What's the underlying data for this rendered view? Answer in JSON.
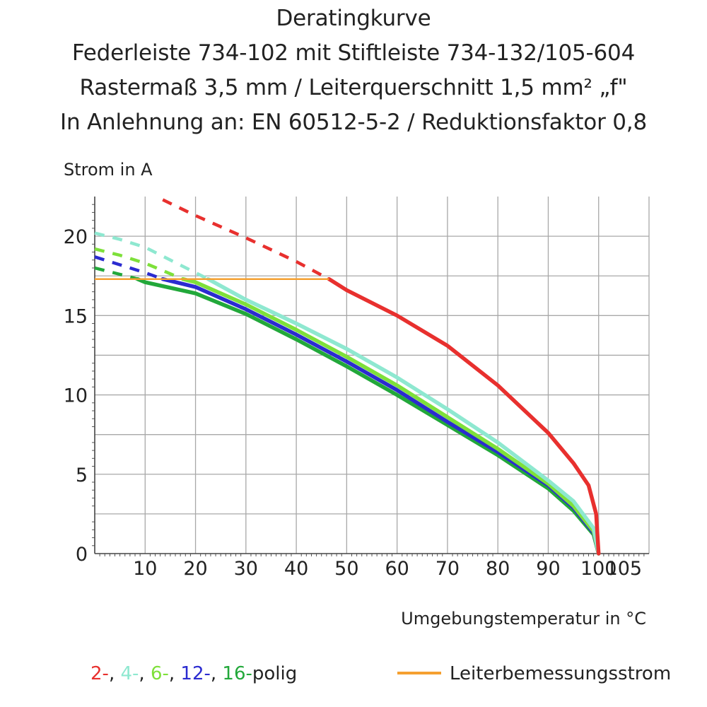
{
  "titles": [
    "Deratingkurve",
    "Federleiste 734-102 mit Stiftleiste 734-132/105-604",
    "Rastermaß 3,5 mm / Leiterquerschnitt 1,5 mm² „f\"",
    "In Anlehnung an: EN 60512-5-2 / Reduktionsfaktor 0,8"
  ],
  "legend": {
    "parts": [
      {
        "text": "2-",
        "color": "#e8302e"
      },
      {
        "text": ", ",
        "color": "#222222"
      },
      {
        "text": "4-",
        "color": "#8ee8d0"
      },
      {
        "text": ", ",
        "color": "#222222"
      },
      {
        "text": "6-",
        "color": "#7ee03a"
      },
      {
        "text": ", ",
        "color": "#222222"
      },
      {
        "text": "12-",
        "color": "#2b2bd0"
      },
      {
        "text": ", ",
        "color": "#222222"
      },
      {
        "text": "16-",
        "color": "#22a83a"
      },
      {
        "text": "polig",
        "color": "#222222"
      }
    ],
    "rated_label": "Leiterbemessungsstrom",
    "rated_color": "#f5a030"
  },
  "chart_data": {
    "type": "line",
    "ylabel": "Strom in A",
    "xlabel": "Umgebungstemperatur in °C",
    "xlim": [
      0,
      110
    ],
    "ylim": [
      0,
      22.5
    ],
    "xticks": [
      10,
      20,
      30,
      40,
      50,
      60,
      70,
      80,
      90,
      100,
      105
    ],
    "yticks": [
      0,
      5,
      10,
      15,
      20
    ],
    "xgrid": [
      0,
      10,
      20,
      30,
      40,
      50,
      60,
      70,
      80,
      90,
      100,
      110
    ],
    "ygrid": [
      0,
      2.5,
      5,
      7.5,
      10,
      12.5,
      15,
      17.5,
      20
    ],
    "grid": true,
    "rated_current": {
      "value": 17.3,
      "x_range": [
        0,
        46.5
      ],
      "color": "#f5a030"
    },
    "series": [
      {
        "name": "2-polig",
        "color": "#e8302e",
        "dashed": [
          [
            13.5,
            22.3
          ],
          [
            20,
            21.3
          ],
          [
            30,
            19.9
          ],
          [
            40,
            18.4
          ],
          [
            46.5,
            17.3
          ]
        ],
        "solid": [
          [
            46.5,
            17.3
          ],
          [
            50,
            16.6
          ],
          [
            60,
            15.0
          ],
          [
            70,
            13.1
          ],
          [
            80,
            10.6
          ],
          [
            90,
            7.6
          ],
          [
            95,
            5.7
          ],
          [
            98,
            4.3
          ],
          [
            99.5,
            2.5
          ],
          [
            100,
            0
          ]
        ]
      },
      {
        "name": "4-polig",
        "color": "#8ee8d0",
        "dashed": [
          [
            0,
            20.2
          ],
          [
            5,
            19.8
          ],
          [
            10,
            19.3
          ],
          [
            15,
            18.5
          ],
          [
            22.5,
            17.3
          ]
        ],
        "solid": [
          [
            22.5,
            17.3
          ],
          [
            30,
            16.0
          ],
          [
            40,
            14.5
          ],
          [
            50,
            12.9
          ],
          [
            60,
            11.1
          ],
          [
            70,
            9.1
          ],
          [
            80,
            7.0
          ],
          [
            90,
            4.6
          ],
          [
            95,
            3.3
          ],
          [
            99,
            1.6
          ],
          [
            100,
            0
          ]
        ]
      },
      {
        "name": "6-polig",
        "color": "#7ee03a",
        "dashed": [
          [
            0,
            19.2
          ],
          [
            5,
            18.8
          ],
          [
            10,
            18.3
          ],
          [
            17.5,
            17.3
          ]
        ],
        "solid": [
          [
            17.5,
            17.3
          ],
          [
            20,
            17.1
          ],
          [
            30,
            15.7
          ],
          [
            40,
            14.1
          ],
          [
            50,
            12.4
          ],
          [
            60,
            10.6
          ],
          [
            70,
            8.6
          ],
          [
            80,
            6.6
          ],
          [
            90,
            4.4
          ],
          [
            95,
            3.0
          ],
          [
            99,
            1.4
          ],
          [
            100,
            0
          ]
        ]
      },
      {
        "name": "12-polig",
        "color": "#2b2bd0",
        "dashed": [
          [
            0,
            18.7
          ],
          [
            5,
            18.2
          ],
          [
            10,
            17.7
          ],
          [
            13.5,
            17.3
          ]
        ],
        "solid": [
          [
            13.5,
            17.3
          ],
          [
            20,
            16.8
          ],
          [
            30,
            15.4
          ],
          [
            40,
            13.8
          ],
          [
            50,
            12.1
          ],
          [
            60,
            10.3
          ],
          [
            70,
            8.3
          ],
          [
            80,
            6.4
          ],
          [
            90,
            4.3
          ],
          [
            95,
            2.9
          ],
          [
            99,
            1.3
          ],
          [
            100,
            0
          ]
        ]
      },
      {
        "name": "16-polig",
        "color": "#22a83a",
        "dashed": [
          [
            0,
            18.0
          ],
          [
            5,
            17.6
          ],
          [
            8.5,
            17.3
          ]
        ],
        "solid": [
          [
            8.5,
            17.3
          ],
          [
            10,
            17.1
          ],
          [
            20,
            16.4
          ],
          [
            30,
            15.1
          ],
          [
            40,
            13.5
          ],
          [
            50,
            11.8
          ],
          [
            60,
            10.0
          ],
          [
            70,
            8.1
          ],
          [
            80,
            6.2
          ],
          [
            90,
            4.1
          ],
          [
            95,
            2.7
          ],
          [
            99,
            1.2
          ],
          [
            100,
            0
          ]
        ]
      }
    ]
  }
}
